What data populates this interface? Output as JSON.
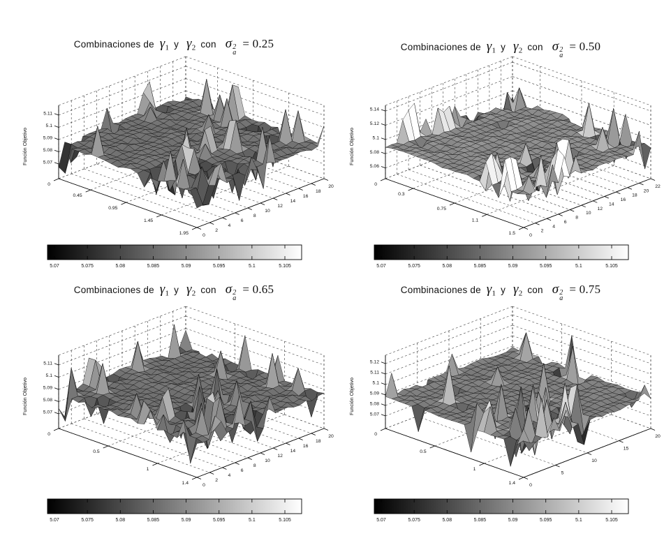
{
  "figure": {
    "background": "#ffffff"
  },
  "title_parts": {
    "prefix": "Combinaciones de",
    "gamma": "γ",
    "sub1": "1",
    "conj": "y",
    "sub2": "2",
    "con": "con",
    "sigma": "σ",
    "sup": "2",
    "sub_a": "a"
  },
  "colorbar": {
    "ticks": [
      "5.07",
      "5.075",
      "5.08",
      "5.085",
      "5.09",
      "5.095",
      "5.1",
      "5.105"
    ],
    "range": [
      5.07,
      5.105
    ],
    "min_color": "#000000",
    "max_color": "#ffffff"
  },
  "chart_data": [
    {
      "type": "surface",
      "sigma_eq": "= 0.25",
      "zlabel": "Función Objetivo",
      "u_ticks": [
        "0",
        "0.45",
        "0.95",
        "1.45",
        "1.95"
      ],
      "u_max": 1.95,
      "v_ticks": [
        "0",
        "2",
        "4",
        "6",
        "8",
        "10",
        "12",
        "14",
        "16",
        "18",
        "20"
      ],
      "v_max": 20,
      "z_ticks": [
        "5.07",
        "5.08",
        "5.09",
        "5.1",
        "5.11"
      ],
      "z_range": [
        5.058,
        5.118
      ],
      "color_range": [
        5.068,
        5.108
      ],
      "surface_pattern": "flat plateau near 5.085 with dense sharp spikes (5.07-5.11) along front-left band and back edge",
      "surface_gen": {
        "seed": 7,
        "base": 5.086,
        "noise": 0.003,
        "amp_up": 0.027,
        "amp_dn": 0.023,
        "grid": 21,
        "front_i": 13,
        "front_j": 13,
        "p_front": 0.42,
        "p_back": 0.32,
        "p_right": 0.25,
        "p_base": 0.02
      }
    },
    {
      "type": "surface",
      "sigma_eq": "= 0.50",
      "zlabel": "Función Objetivo",
      "u_ticks": [
        "0",
        "0.3",
        "0.75",
        "1.1",
        "1.5"
      ],
      "u_max": 1.5,
      "v_ticks": [
        "0",
        "2",
        "4",
        "6",
        "8",
        "10",
        "12",
        "14",
        "16",
        "18",
        "20",
        "22"
      ],
      "v_max": 22,
      "z_ticks": [
        "5.06",
        "5.08",
        "5.1",
        "5.12",
        "5.14"
      ],
      "z_range": [
        5.045,
        5.148
      ],
      "color_range": [
        5.068,
        5.108
      ],
      "surface_pattern": "large flat plateau near 5.09 with spikes (5.06-5.14) along back edge and scattered on front-left",
      "surface_gen": {
        "seed": 15,
        "base": 5.09,
        "noise": 0.004,
        "amp_up": 0.047,
        "amp_dn": 0.03,
        "grid": 22,
        "front_i": 15,
        "front_j": 11,
        "p_front": 0.34,
        "p_back": 0.36,
        "p_right": 0.2,
        "p_base": 0.012
      }
    },
    {
      "type": "surface",
      "sigma_eq": "= 0.65",
      "zlabel": "Función Objetivo",
      "u_ticks": [
        "0",
        "0.5",
        "1",
        "1.4"
      ],
      "u_max": 1.4,
      "v_ticks": [
        "0",
        "2",
        "4",
        "6",
        "8",
        "10",
        "12",
        "14",
        "16",
        "18",
        "20"
      ],
      "v_max": 20,
      "z_ticks": [
        "5.07",
        "5.08",
        "5.09",
        "5.1",
        "5.11"
      ],
      "z_range": [
        5.058,
        5.118
      ],
      "color_range": [
        5.068,
        5.108
      ],
      "surface_pattern": "flat plateau near 5.085 with tall spikes (5.07-5.11) concentrated on front-left band",
      "surface_gen": {
        "seed": 23,
        "base": 5.086,
        "noise": 0.003,
        "amp_up": 0.026,
        "amp_dn": 0.021,
        "grid": 21,
        "front_i": 13,
        "front_j": 12,
        "p_front": 0.4,
        "p_back": 0.25,
        "p_right": 0.22,
        "p_base": 0.02
      }
    },
    {
      "type": "surface",
      "sigma_eq": "= 0.75",
      "zlabel": "Función Objetivo",
      "u_ticks": [
        "0",
        "0.5",
        "1",
        "1.4"
      ],
      "u_max": 1.4,
      "v_ticks": [
        "0",
        "5",
        "10",
        "15",
        "20"
      ],
      "v_max": 20,
      "z_ticks": [
        "5.07",
        "5.08",
        "5.09",
        "5.1",
        "5.11",
        "5.12"
      ],
      "z_range": [
        5.058,
        5.128
      ],
      "color_range": [
        5.068,
        5.108
      ],
      "surface_pattern": "flat plateau near 5.088 with isolated sharp spikes (5.07-5.12) along front band and mid-field",
      "surface_gen": {
        "seed": 31,
        "base": 5.088,
        "noise": 0.003,
        "amp_up": 0.036,
        "amp_dn": 0.026,
        "grid": 21,
        "front_i": 13,
        "front_j": 12,
        "p_front": 0.38,
        "p_back": 0.2,
        "p_right": 0.2,
        "p_base": 0.02
      }
    }
  ]
}
